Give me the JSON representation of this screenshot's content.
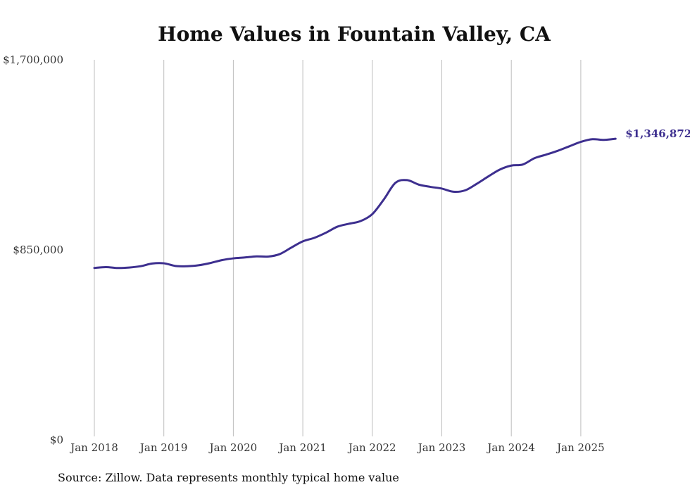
{
  "colors": {
    "series": "#3d2f8f",
    "grid": "#bdbdbd",
    "text": "#333333"
  },
  "source_note": "Source: Zillow. Data represents monthly typical home value",
  "chart_data": {
    "type": "line",
    "title": "Home Values in Fountain Valley, CA",
    "xlabel": "",
    "ylabel": "",
    "ylim": [
      0,
      1700000
    ],
    "y_ticks": [
      {
        "value": 0,
        "label": "$0"
      },
      {
        "value": 850000,
        "label": "$850,000"
      },
      {
        "value": 1700000,
        "label": "$1,700,000"
      }
    ],
    "x_ticks": [
      {
        "value": "2018-01",
        "label": "Jan 2018"
      },
      {
        "value": "2019-01",
        "label": "Jan 2019"
      },
      {
        "value": "2020-01",
        "label": "Jan 2020"
      },
      {
        "value": "2021-01",
        "label": "Jan 2021"
      },
      {
        "value": "2022-01",
        "label": "Jan 2022"
      },
      {
        "value": "2023-01",
        "label": "Jan 2023"
      },
      {
        "value": "2024-01",
        "label": "Jan 2024"
      },
      {
        "value": "2025-01",
        "label": "Jan 2025"
      }
    ],
    "grid": "vertical",
    "legend": "none",
    "end_label": "$1,346,872",
    "series": [
      {
        "x": [
          "2018-01",
          "2018-03",
          "2018-05",
          "2018-07",
          "2018-09",
          "2018-11",
          "2019-01",
          "2019-03",
          "2019-05",
          "2019-07",
          "2019-09",
          "2019-11",
          "2020-01",
          "2020-03",
          "2020-05",
          "2020-07",
          "2020-09",
          "2020-11",
          "2021-01",
          "2021-03",
          "2021-05",
          "2021-07",
          "2021-09",
          "2021-11",
          "2022-01",
          "2022-03",
          "2022-05",
          "2022-07",
          "2022-09",
          "2022-11",
          "2023-01",
          "2023-03",
          "2023-05",
          "2023-07",
          "2023-09",
          "2023-11",
          "2024-01",
          "2024-03",
          "2024-05",
          "2024-07",
          "2024-09",
          "2024-11",
          "2025-01",
          "2025-03",
          "2025-05",
          "2025-07"
        ],
        "values": [
          769000,
          773000,
          769000,
          771000,
          777000,
          789000,
          790000,
          778000,
          777000,
          781000,
          791000,
          804000,
          812000,
          816000,
          821000,
          820000,
          831000,
          860000,
          888000,
          904000,
          927000,
          954000,
          967000,
          979000,
          1010000,
          1076000,
          1150000,
          1162000,
          1142000,
          1132000,
          1124000,
          1110000,
          1116000,
          1145000,
          1178000,
          1209000,
          1227000,
          1232000,
          1260000,
          1276000,
          1293000,
          1313000,
          1333000,
          1345000,
          1342000,
          1346872
        ]
      }
    ]
  }
}
